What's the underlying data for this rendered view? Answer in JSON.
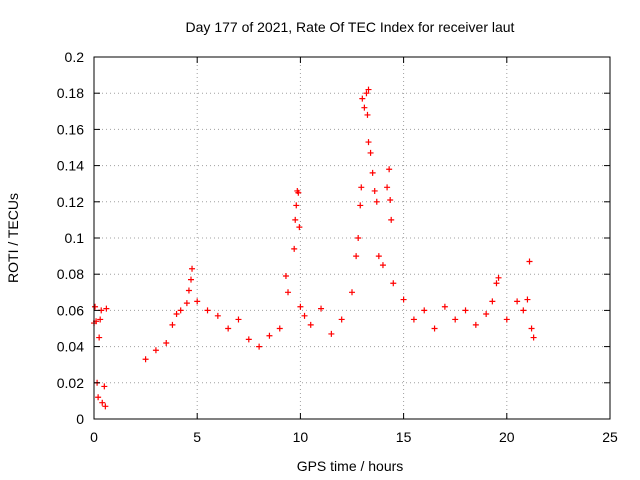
{
  "chart_data": {
    "type": "scatter",
    "title": "Day 177 of 2021, Rate Of TEC Index for receiver laut",
    "xlabel": "GPS time / hours",
    "ylabel": "ROTI / TECUs",
    "xlim": [
      0,
      25
    ],
    "ylim": [
      0,
      0.2
    ],
    "xticks": [
      "0",
      "5",
      "10",
      "15",
      "20",
      "25"
    ],
    "yticks": [
      "0",
      "0.02",
      "0.04",
      "0.06",
      "0.08",
      "0.1",
      "0.12",
      "0.14",
      "0.16",
      "0.18",
      "0.2"
    ],
    "grid": true,
    "marker": "plus",
    "color": "#ff0000",
    "series": [
      {
        "name": "",
        "points": [
          [
            0.0,
            0.053
          ],
          [
            0.05,
            0.062
          ],
          [
            0.1,
            0.054
          ],
          [
            0.15,
            0.02
          ],
          [
            0.2,
            0.012
          ],
          [
            0.25,
            0.045
          ],
          [
            0.3,
            0.055
          ],
          [
            0.35,
            0.06
          ],
          [
            0.4,
            0.009
          ],
          [
            0.5,
            0.018
          ],
          [
            0.6,
            0.061
          ],
          [
            0.55,
            0.007
          ],
          [
            2.5,
            0.033
          ],
          [
            3.0,
            0.038
          ],
          [
            3.5,
            0.042
          ],
          [
            3.8,
            0.052
          ],
          [
            4.0,
            0.058
          ],
          [
            4.2,
            0.06
          ],
          [
            4.5,
            0.064
          ],
          [
            4.6,
            0.071
          ],
          [
            4.7,
            0.077
          ],
          [
            4.75,
            0.083
          ],
          [
            5.0,
            0.065
          ],
          [
            5.5,
            0.06
          ],
          [
            6.0,
            0.057
          ],
          [
            6.5,
            0.05
          ],
          [
            7.0,
            0.055
          ],
          [
            7.5,
            0.044
          ],
          [
            8.0,
            0.04
          ],
          [
            8.5,
            0.046
          ],
          [
            9.0,
            0.05
          ],
          [
            9.3,
            0.079
          ],
          [
            9.4,
            0.07
          ],
          [
            9.7,
            0.094
          ],
          [
            9.75,
            0.11
          ],
          [
            9.8,
            0.118
          ],
          [
            9.85,
            0.126
          ],
          [
            9.9,
            0.125
          ],
          [
            9.95,
            0.106
          ],
          [
            10.0,
            0.062
          ],
          [
            10.2,
            0.057
          ],
          [
            10.5,
            0.052
          ],
          [
            11.0,
            0.061
          ],
          [
            11.5,
            0.047
          ],
          [
            12.0,
            0.055
          ],
          [
            12.5,
            0.07
          ],
          [
            12.7,
            0.09
          ],
          [
            12.8,
            0.1
          ],
          [
            12.9,
            0.118
          ],
          [
            12.95,
            0.128
          ],
          [
            13.0,
            0.177
          ],
          [
            13.1,
            0.172
          ],
          [
            13.2,
            0.18
          ],
          [
            13.3,
            0.182
          ],
          [
            13.25,
            0.168
          ],
          [
            13.4,
            0.147
          ],
          [
            13.3,
            0.153
          ],
          [
            13.5,
            0.136
          ],
          [
            13.6,
            0.126
          ],
          [
            13.7,
            0.12
          ],
          [
            13.8,
            0.09
          ],
          [
            14.0,
            0.085
          ],
          [
            14.2,
            0.128
          ],
          [
            14.3,
            0.138
          ],
          [
            14.35,
            0.121
          ],
          [
            14.4,
            0.11
          ],
          [
            14.5,
            0.075
          ],
          [
            15.0,
            0.066
          ],
          [
            15.5,
            0.055
          ],
          [
            16.0,
            0.06
          ],
          [
            16.5,
            0.05
          ],
          [
            17.0,
            0.062
          ],
          [
            17.5,
            0.055
          ],
          [
            18.0,
            0.06
          ],
          [
            18.5,
            0.052
          ],
          [
            19.0,
            0.058
          ],
          [
            19.3,
            0.065
          ],
          [
            19.5,
            0.075
          ],
          [
            19.6,
            0.078
          ],
          [
            20.0,
            0.055
          ],
          [
            20.5,
            0.065
          ],
          [
            20.8,
            0.06
          ],
          [
            21.0,
            0.066
          ],
          [
            21.1,
            0.087
          ],
          [
            21.2,
            0.05
          ],
          [
            21.3,
            0.045
          ]
        ]
      }
    ]
  }
}
